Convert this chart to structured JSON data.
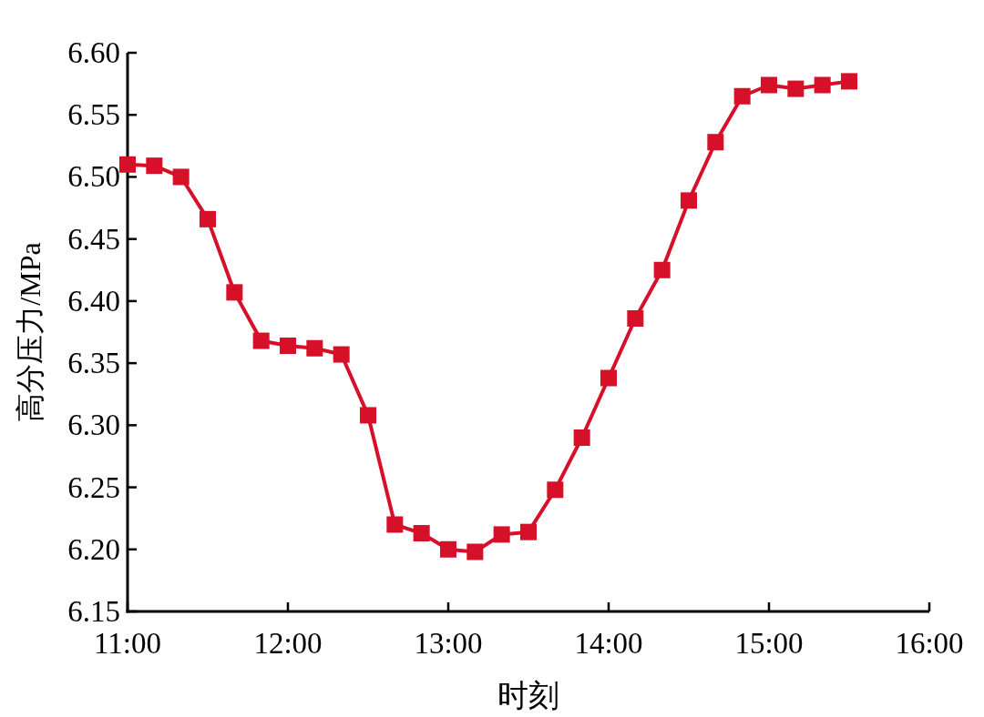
{
  "chart_data": {
    "type": "line",
    "xlabel": "时刻",
    "ylabel": "高分压力/MPa",
    "x": [
      11,
      11.1667,
      11.3333,
      11.5,
      11.6667,
      11.8333,
      12,
      12.1667,
      12.3333,
      12.5,
      12.6667,
      12.8333,
      13,
      13.1667,
      13.3333,
      13.5,
      13.6667,
      13.8333,
      14,
      14.1667,
      14.3333,
      14.5,
      14.6667,
      14.8333,
      15,
      15.1667,
      15.3333,
      15.5
    ],
    "series": [
      {
        "color": "#d7102a",
        "values": [
          6.51,
          6.509,
          6.5,
          6.466,
          6.407,
          6.368,
          6.364,
          6.362,
          6.357,
          6.308,
          6.22,
          6.213,
          6.2,
          6.198,
          6.212,
          6.214,
          6.248,
          6.29,
          6.338,
          6.386,
          6.425,
          6.481,
          6.528,
          6.565,
          6.574,
          6.571,
          6.574,
          6.577
        ]
      }
    ],
    "xlim": [
      11,
      16
    ],
    "xticks": [
      {
        "value": 11,
        "label": "11:00"
      },
      {
        "value": 12,
        "label": "12:00"
      },
      {
        "value": 13,
        "label": "13:00"
      },
      {
        "value": 14,
        "label": "14:00"
      },
      {
        "value": 15,
        "label": "15:00"
      },
      {
        "value": 16,
        "label": "16:00"
      }
    ],
    "ylim": [
      6.15,
      6.6
    ],
    "yticks": [
      {
        "value": 6.15,
        "label": "6.15"
      },
      {
        "value": 6.2,
        "label": "6.20"
      },
      {
        "value": 6.25,
        "label": "6.25"
      },
      {
        "value": 6.3,
        "label": "6.30"
      },
      {
        "value": 6.35,
        "label": "6.35"
      },
      {
        "value": 6.4,
        "label": "6.40"
      },
      {
        "value": 6.45,
        "label": "6.45"
      },
      {
        "value": 6.5,
        "label": "6.50"
      },
      {
        "value": 6.55,
        "label": "6.55"
      },
      {
        "value": 6.6,
        "label": "6.60"
      }
    ],
    "marker": "square",
    "line_style": "solid",
    "grid": false
  }
}
